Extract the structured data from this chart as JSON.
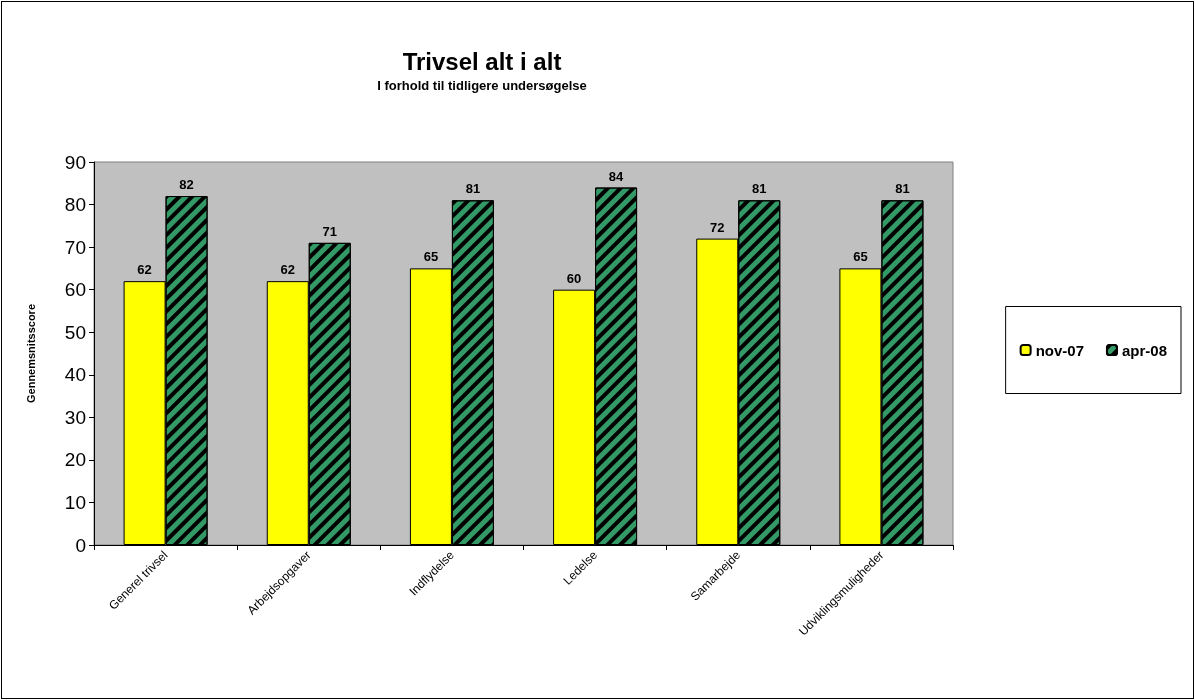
{
  "chart_data": {
    "type": "bar",
    "title": "Trivsel alt i alt",
    "subtitle": "I forhold til tidligere undersøgelse",
    "ylabel": "Gennemsnitsscore",
    "categories": [
      "Generel trivsel",
      "Arbejdsopgaver",
      "Indflydelse",
      "Ledelse",
      "Samarbejde",
      "Udviklingsmuligheder"
    ],
    "series": [
      {
        "name": "nov-07",
        "color": "#ffff00",
        "values": [
          62,
          62,
          65,
          60,
          72,
          65
        ]
      },
      {
        "name": "apr-08",
        "color": "#339966",
        "values": [
          82,
          71,
          81,
          84,
          81,
          81
        ]
      }
    ],
    "ylim": [
      0,
      90
    ],
    "yticks": [
      0,
      10,
      20,
      30,
      40,
      50,
      60,
      70,
      80,
      90
    ],
    "grid": false,
    "legend": "right",
    "data_labels": true
  }
}
